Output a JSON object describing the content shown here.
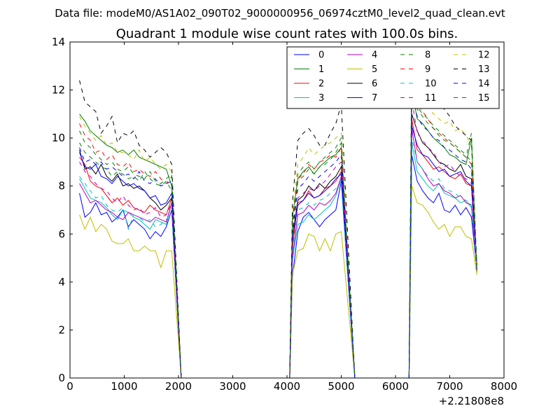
{
  "chart_data": {
    "type": "line",
    "suptitle": "Data file: modeM0/AS1A02_090T02_9000000956_06974cztM0_level2_quad_clean.evt",
    "title": "Quadrant 1 module wise count rates with 100.0s bins.",
    "xlabel": "",
    "ylabel": "",
    "x_offset_label": "+2.21808e8",
    "xlim": [
      0,
      8000
    ],
    "ylim": [
      0,
      14
    ],
    "x_ticks": [
      0,
      1000,
      2000,
      3000,
      4000,
      5000,
      6000,
      7000,
      8000
    ],
    "y_ticks": [
      0,
      2,
      4,
      6,
      8,
      10,
      12,
      14
    ],
    "x_tick_labels": [
      "0",
      "1000",
      "2000",
      "3000",
      "4000",
      "5000",
      "6000",
      "7000",
      "8000"
    ],
    "y_tick_labels": [
      "0",
      "2",
      "4",
      "6",
      "8",
      "10",
      "12",
      "14"
    ],
    "grid": false,
    "legend": "upper-right, 4 columns",
    "segments": [
      {
        "x0": 175,
        "count": 18,
        "step": 100
      },
      {
        "x0": 4100,
        "count": 10,
        "step": 100
      },
      {
        "x0": 6300,
        "count": 13,
        "step": 100
      }
    ],
    "zero_x": [
      2050,
      2150,
      2500,
      3000,
      3500,
      4000,
      4050,
      5250,
      5500,
      6000,
      6150,
      6250
    ],
    "series": [
      {
        "name": "0",
        "color": "#0000ff",
        "dash": "solid",
        "values": [
          7.7,
          6.7,
          6.9,
          7.3,
          6.8,
          6.9,
          6.5,
          6.7,
          7.0,
          6.3,
          6.6,
          6.4,
          6.2,
          5.8,
          6.1,
          5.9,
          6.3,
          7.0,
          4.2,
          6.1,
          6.7,
          6.9,
          6.6,
          6.3,
          6.6,
          6.8,
          7.0,
          8.2,
          9.3,
          8.2,
          7.8,
          7.5,
          7.3,
          7.7,
          7.0,
          6.9,
          7.2,
          6.8,
          7.1,
          6.7,
          4.5
        ]
      },
      {
        "name": "1",
        "color": "#008000",
        "dash": "solid",
        "values": [
          11.0,
          10.7,
          10.3,
          10.1,
          9.9,
          9.7,
          9.6,
          9.4,
          9.5,
          9.3,
          9.5,
          9.2,
          9.1,
          9.0,
          8.9,
          8.8,
          8.7,
          8.0,
          6.7,
          8.3,
          8.6,
          8.8,
          8.5,
          8.8,
          9.0,
          9.2,
          9.3,
          9.6,
          12.0,
          10.8,
          10.6,
          10.3,
          10.0,
          9.8,
          9.6,
          9.3,
          9.2,
          9.0,
          8.9,
          10.0,
          4.4
        ]
      },
      {
        "name": "2",
        "color": "#ff0000",
        "dash": "solid",
        "values": [
          9.2,
          8.9,
          8.2,
          8.0,
          7.9,
          7.6,
          7.3,
          7.5,
          7.2,
          7.4,
          7.1,
          7.0,
          6.9,
          7.2,
          7.0,
          6.9,
          6.8,
          7.5,
          5.4,
          7.3,
          7.4,
          7.8,
          7.5,
          7.6,
          7.9,
          8.0,
          8.2,
          8.6,
          10.8,
          9.5,
          9.3,
          9.0,
          8.7,
          8.8,
          8.6,
          8.4,
          8.3,
          8.5,
          8.1,
          8.0,
          4.4
        ]
      },
      {
        "name": "3",
        "color": "#00bfbf",
        "dash": "solid",
        "values": [
          8.3,
          7.9,
          7.5,
          7.4,
          7.3,
          7.1,
          6.8,
          6.6,
          7.0,
          6.9,
          6.7,
          6.6,
          6.4,
          6.2,
          6.6,
          6.5,
          6.4,
          7.3,
          4.9,
          6.4,
          6.5,
          6.8,
          6.6,
          6.8,
          7.0,
          7.2,
          7.6,
          8.3,
          9.8,
          8.6,
          8.3,
          8.0,
          7.8,
          8.1,
          7.7,
          7.6,
          7.5,
          7.3,
          7.4,
          7.1,
          4.5
        ]
      },
      {
        "name": "4",
        "color": "#bf00bf",
        "dash": "solid",
        "values": [
          8.1,
          7.7,
          7.3,
          7.4,
          7.2,
          7.0,
          6.9,
          6.7,
          6.6,
          6.9,
          6.8,
          6.7,
          6.6,
          6.5,
          6.7,
          6.6,
          6.5,
          7.3,
          5.0,
          6.8,
          6.9,
          7.2,
          7.0,
          7.3,
          7.2,
          7.4,
          7.7,
          8.4,
          10.4,
          9.0,
          8.7,
          8.3,
          8.0,
          8.1,
          7.8,
          7.7,
          7.5,
          7.6,
          7.3,
          7.2,
          4.5
        ]
      },
      {
        "name": "5",
        "color": "#bfbf00",
        "dash": "solid",
        "values": [
          6.8,
          6.2,
          6.7,
          6.1,
          6.4,
          6.2,
          5.7,
          5.6,
          5.6,
          5.8,
          5.3,
          5.3,
          5.5,
          5.3,
          5.3,
          4.6,
          5.3,
          5.3,
          4.3,
          5.3,
          5.4,
          6.0,
          5.9,
          5.3,
          5.8,
          5.3,
          6.0,
          6.1,
          8.0,
          7.3,
          7.2,
          6.9,
          6.5,
          6.2,
          6.4,
          5.9,
          6.3,
          6.3,
          5.9,
          5.8,
          4.3
        ]
      },
      {
        "name": "6",
        "color": "#000000",
        "dash": "solid",
        "values": [
          9.5,
          8.7,
          8.8,
          8.5,
          8.9,
          8.4,
          8.2,
          8.5,
          8.0,
          8.1,
          7.9,
          8.0,
          7.8,
          7.5,
          7.3,
          7.0,
          7.2,
          7.5,
          5.9,
          7.4,
          7.6,
          8.0,
          7.8,
          8.1,
          7.9,
          8.2,
          8.4,
          8.8,
          11.0,
          10.3,
          9.8,
          9.6,
          9.3,
          9.0,
          8.9,
          8.7,
          8.6,
          8.9,
          8.4,
          8.3,
          4.7
        ]
      },
      {
        "name": "7",
        "color": "#0000ff",
        "dash": "solid",
        "values": [
          9.4,
          8.8,
          8.7,
          8.9,
          8.4,
          8.3,
          8.1,
          8.4,
          8.2,
          8.0,
          8.1,
          7.9,
          7.8,
          7.5,
          7.6,
          7.2,
          7.3,
          7.7,
          5.8,
          7.2,
          7.4,
          7.7,
          7.5,
          7.6,
          7.8,
          8.0,
          8.3,
          8.5,
          10.5,
          9.7,
          9.3,
          9.2,
          8.9,
          8.6,
          8.7,
          8.4,
          8.5,
          8.6,
          8.2,
          8.0,
          4.5
        ]
      },
      {
        "name": "8",
        "color": "#008000",
        "dash": "dashed",
        "values": [
          9.8,
          9.4,
          9.2,
          9.0,
          8.8,
          8.7,
          8.4,
          8.6,
          8.5,
          8.3,
          8.4,
          8.2,
          8.6,
          8.3,
          8.1,
          8.0,
          8.2,
          7.8,
          6.1,
          8.2,
          8.4,
          8.7,
          8.5,
          8.8,
          8.9,
          9.1,
          9.4,
          9.8,
          12.6,
          11.3,
          11.0,
          10.8,
          10.5,
          10.3,
          10.1,
          9.9,
          9.7,
          9.5,
          9.3,
          9.0,
          4.5
        ]
      },
      {
        "name": "9",
        "color": "#ff0000",
        "dash": "dashed",
        "values": [
          10.6,
          10.1,
          9.9,
          9.4,
          9.5,
          9.1,
          9.3,
          8.9,
          8.8,
          9.0,
          8.6,
          8.7,
          8.5,
          8.4,
          8.6,
          8.3,
          8.1,
          8.4,
          6.4,
          8.3,
          8.5,
          8.9,
          8.7,
          9.0,
          9.1,
          9.3,
          9.2,
          9.6,
          12.9,
          11.4,
          11.1,
          10.8,
          10.4,
          10.2,
          10.0,
          9.8,
          9.6,
          9.4,
          9.2,
          8.9,
          4.5
        ]
      },
      {
        "name": "10",
        "color": "#00bfbf",
        "dash": "dashed",
        "values": [
          8.4,
          8.1,
          7.8,
          7.5,
          7.6,
          7.2,
          7.0,
          6.9,
          7.1,
          6.2,
          6.8,
          6.7,
          6.5,
          6.6,
          6.3,
          6.4,
          6.6,
          6.9,
          5.1,
          7.0,
          7.1,
          7.3,
          7.2,
          7.4,
          7.5,
          7.7,
          7.9,
          8.1,
          10.0,
          9.0,
          8.7,
          8.4,
          8.2,
          8.3,
          7.9,
          7.8,
          7.7,
          7.5,
          7.4,
          7.2,
          4.4
        ]
      },
      {
        "name": "11",
        "color": "#bf00bf",
        "dash": "dashed",
        "values": [
          9.0,
          8.6,
          8.4,
          8.1,
          7.9,
          7.8,
          7.5,
          7.3,
          7.6,
          7.2,
          7.0,
          7.1,
          6.8,
          6.9,
          7.1,
          6.7,
          6.8,
          7.3,
          5.6,
          7.5,
          7.7,
          7.9,
          7.8,
          8.0,
          8.2,
          8.5,
          8.8,
          9.0,
          11.6,
          10.2,
          9.9,
          9.6,
          9.4,
          9.0,
          8.8,
          8.9,
          8.6,
          8.4,
          8.3,
          8.1,
          4.5
        ]
      },
      {
        "name": "12",
        "color": "#bfbf00",
        "dash": "dashed",
        "values": [
          10.9,
          10.5,
          10.2,
          9.9,
          10.1,
          9.7,
          9.8,
          9.4,
          9.4,
          9.3,
          9.1,
          9.5,
          9.0,
          9.2,
          8.9,
          8.7,
          8.9,
          8.6,
          6.8,
          8.9,
          9.2,
          9.6,
          9.3,
          9.5,
          9.7,
          9.8,
          10.0,
          10.2,
          13.0,
          12.0,
          11.5,
          11.3,
          11.0,
          10.8,
          10.6,
          10.7,
          10.3,
          10.4,
          10.1,
          9.7,
          4.4
        ]
      },
      {
        "name": "13",
        "color": "#000000",
        "dash": "dashed",
        "values": [
          12.4,
          11.5,
          11.3,
          11.1,
          10.2,
          10.5,
          10.9,
          9.8,
          10.2,
          10.1,
          10.3,
          9.7,
          9.5,
          9.2,
          9.4,
          9.6,
          9.4,
          8.9,
          7.3,
          9.9,
          10.2,
          10.4,
          10.1,
          9.7,
          9.7,
          10.2,
          10.6,
          11.4,
          13.6,
          12.5,
          12.2,
          11.8,
          11.6,
          11.4,
          11.2,
          10.9,
          10.5,
          10.3,
          10.1,
          9.9,
          4.7
        ]
      },
      {
        "name": "14",
        "color": "#0000ff",
        "dash": "dashed",
        "values": [
          9.6,
          9.0,
          9.1,
          8.9,
          9.0,
          8.7,
          8.8,
          8.6,
          8.4,
          8.5,
          8.3,
          8.6,
          8.2,
          8.1,
          8.3,
          8.0,
          8.1,
          8.2,
          6.0,
          7.9,
          8.1,
          8.4,
          8.2,
          8.4,
          8.6,
          8.8,
          9.0,
          9.3,
          11.8,
          10.9,
          10.5,
          10.3,
          10.0,
          9.9,
          9.6,
          9.5,
          9.3,
          9.1,
          9.0,
          8.7,
          4.5
        ]
      },
      {
        "name": "15",
        "color": "#008000",
        "dash": "dashed",
        "values": [
          10.3,
          9.8,
          9.6,
          9.3,
          9.1,
          8.9,
          9.0,
          8.7,
          8.6,
          8.8,
          8.5,
          8.4,
          8.3,
          8.6,
          8.2,
          8.1,
          8.3,
          8.5,
          6.5,
          8.5,
          8.8,
          9.0,
          8.7,
          9.0,
          9.2,
          9.4,
          9.6,
          10.0,
          12.2,
          11.2,
          10.9,
          10.6,
          10.4,
          10.1,
          9.9,
          9.8,
          9.6,
          9.4,
          9.2,
          10.2,
          4.5
        ]
      }
    ]
  }
}
